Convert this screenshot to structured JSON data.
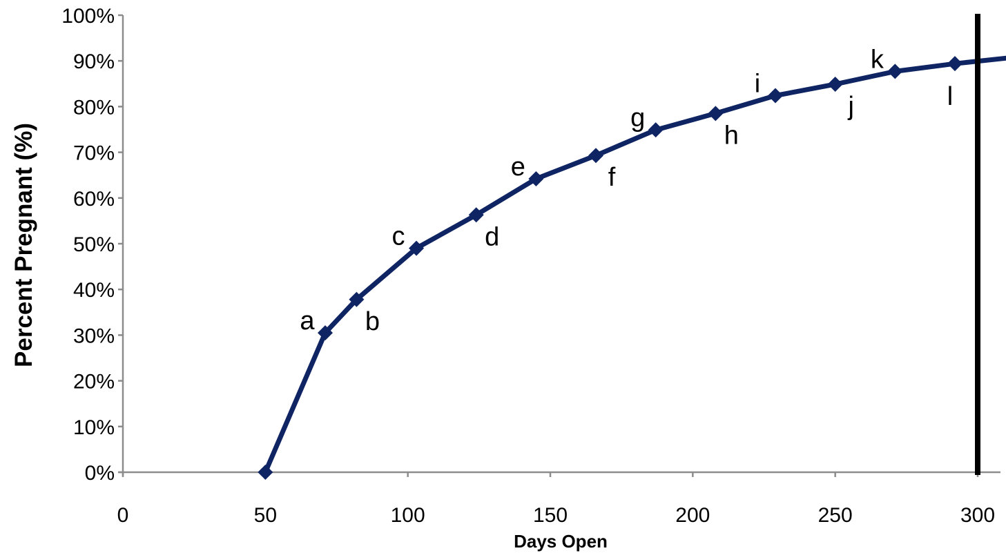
{
  "chart_data": {
    "type": "line",
    "xlabel": "Days Open",
    "ylabel": "Percent Pregnant (%)",
    "xlim": [
      0,
      310
    ],
    "ylim": [
      0,
      100
    ],
    "x_ticks": [
      0,
      50,
      100,
      150,
      200,
      250,
      300
    ],
    "x_tick_labels": [
      "0",
      "50",
      "100",
      "150",
      "200",
      "250",
      "300"
    ],
    "y_ticks": [
      0,
      10,
      20,
      30,
      40,
      50,
      60,
      70,
      80,
      90,
      100
    ],
    "y_tick_labels": [
      "0%",
      "10%",
      "20%",
      "30%",
      "40%",
      "50%",
      "60%",
      "70%",
      "80%",
      "90%",
      "100%"
    ],
    "grid": false,
    "legend": "none",
    "series_color": "#0f2463",
    "reference_line": {
      "x": 300,
      "color": "#000000"
    },
    "series": [
      {
        "x": [
          50,
          71,
          82,
          103,
          124,
          145,
          166,
          187,
          208,
          229,
          250,
          271,
          292,
          313
        ],
        "y": [
          0,
          30.5,
          37.8,
          49,
          56.3,
          64.2,
          69.3,
          74.9,
          78.5,
          82.4,
          84.9,
          87.7,
          89.4,
          90.8
        ],
        "markers": [
          true,
          true,
          true,
          true,
          true,
          true,
          true,
          true,
          true,
          true,
          true,
          true,
          true,
          false
        ]
      }
    ],
    "point_labels": [
      {
        "text": "a",
        "x": 71,
        "y": 30.5,
        "pos": "upper-left"
      },
      {
        "text": "b",
        "x": 82,
        "y": 37.8,
        "pos": "lower-right"
      },
      {
        "text": "c",
        "x": 103,
        "y": 49,
        "pos": "upper-left"
      },
      {
        "text": "d",
        "x": 124,
        "y": 56.3,
        "pos": "lower-right"
      },
      {
        "text": "e",
        "x": 145,
        "y": 64.2,
        "pos": "upper-left"
      },
      {
        "text": "f",
        "x": 166,
        "y": 69.3,
        "pos": "lower-right"
      },
      {
        "text": "g",
        "x": 187,
        "y": 74.9,
        "pos": "upper-left"
      },
      {
        "text": "h",
        "x": 208,
        "y": 78.5,
        "pos": "lower-right"
      },
      {
        "text": "i",
        "x": 229,
        "y": 82.4,
        "pos": "upper-left"
      },
      {
        "text": "j",
        "x": 250,
        "y": 84.9,
        "pos": "lower-right"
      },
      {
        "text": "k",
        "x": 271,
        "y": 87.7,
        "pos": "upper-left"
      },
      {
        "text": "l",
        "x": 292,
        "y": 89.4,
        "pos": "lower-left"
      }
    ]
  }
}
